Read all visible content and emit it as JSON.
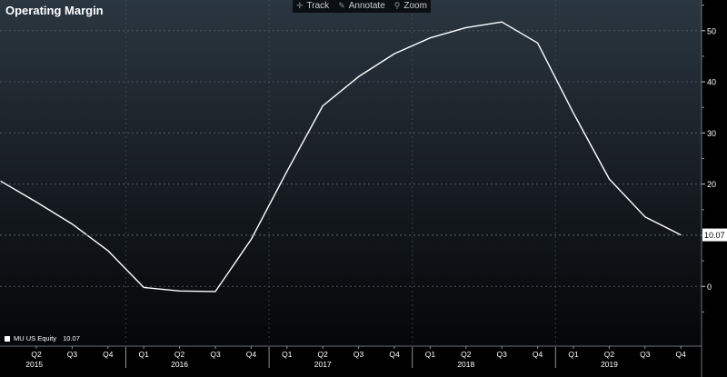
{
  "title": "Operating Margin",
  "toolbar": {
    "items": [
      {
        "label": "Track",
        "icon": "crosshair-icon"
      },
      {
        "label": "Annotate",
        "icon": "pencil-icon"
      },
      {
        "label": "Zoom",
        "icon": "magnifier-icon"
      }
    ]
  },
  "legend": {
    "security": "MU US Equity",
    "value": "10.07",
    "color": "#ffffff"
  },
  "last_value_label": "10.07",
  "colors": {
    "line": "#ffffff",
    "background_top": "#2a3640",
    "background_bottom": "#050607",
    "grid": "#4a545d",
    "text": "#ffffff"
  },
  "chart_data": {
    "type": "line",
    "title": "Operating Margin",
    "xlabel": "",
    "ylabel": "",
    "ylim": [
      -11.5,
      56
    ],
    "y_ticks": [
      0,
      10,
      20,
      30,
      40,
      50
    ],
    "grid": true,
    "legend_position": "bottom-left",
    "quarter_labels": [
      "Q2",
      "Q3",
      "Q4",
      "Q1",
      "Q2",
      "Q3",
      "Q4",
      "Q1",
      "Q2",
      "Q3",
      "Q4",
      "Q1",
      "Q2",
      "Q3",
      "Q4",
      "Q1",
      "Q2",
      "Q3",
      "Q4"
    ],
    "year_labels": [
      {
        "label": "2015",
        "quarter_index": 0.5
      },
      {
        "label": "2016",
        "quarter_index": 4
      },
      {
        "label": "2017",
        "quarter_index": 8
      },
      {
        "label": "2018",
        "quarter_index": 12
      },
      {
        "label": "2019",
        "quarter_index": 16
      }
    ],
    "year_separators_after_index": [
      2,
      6,
      10,
      14
    ],
    "series": [
      {
        "name": "MU US Equity",
        "x_quarter_index": [
          -1,
          0,
          1,
          2,
          3,
          4,
          5,
          6,
          7,
          8,
          9,
          10,
          11,
          12,
          13,
          14,
          15,
          16,
          17,
          18
        ],
        "values": [
          20.6,
          16.5,
          12.2,
          7.0,
          -0.2,
          -0.9,
          -1.0,
          9.2,
          22.5,
          35.3,
          41.0,
          45.5,
          48.6,
          50.6,
          51.7,
          47.6,
          33.9,
          21.0,
          13.6,
          10.07
        ]
      }
    ]
  }
}
